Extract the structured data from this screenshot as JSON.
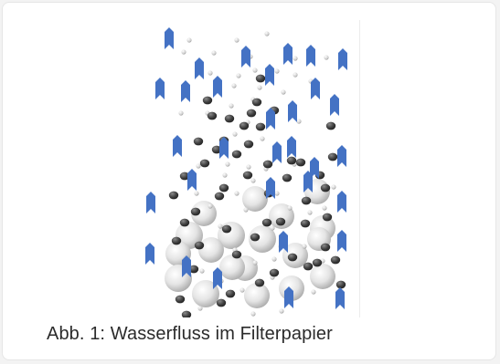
{
  "figure": {
    "caption": "Abb. 1: Wasserfluss im Filterpapier"
  },
  "colors": {
    "arrow": "#4472c4",
    "dark_particle": "#3a3a3a",
    "light_particle": "#bdbdbd",
    "large_particle": "#d9d9d9"
  },
  "icons": {
    "arrow": "water-flow-arrow-icon",
    "dark_particle": "dark-particle-icon",
    "light_particle": "small-particle-icon",
    "large_particle": "large-sphere-icon"
  }
}
